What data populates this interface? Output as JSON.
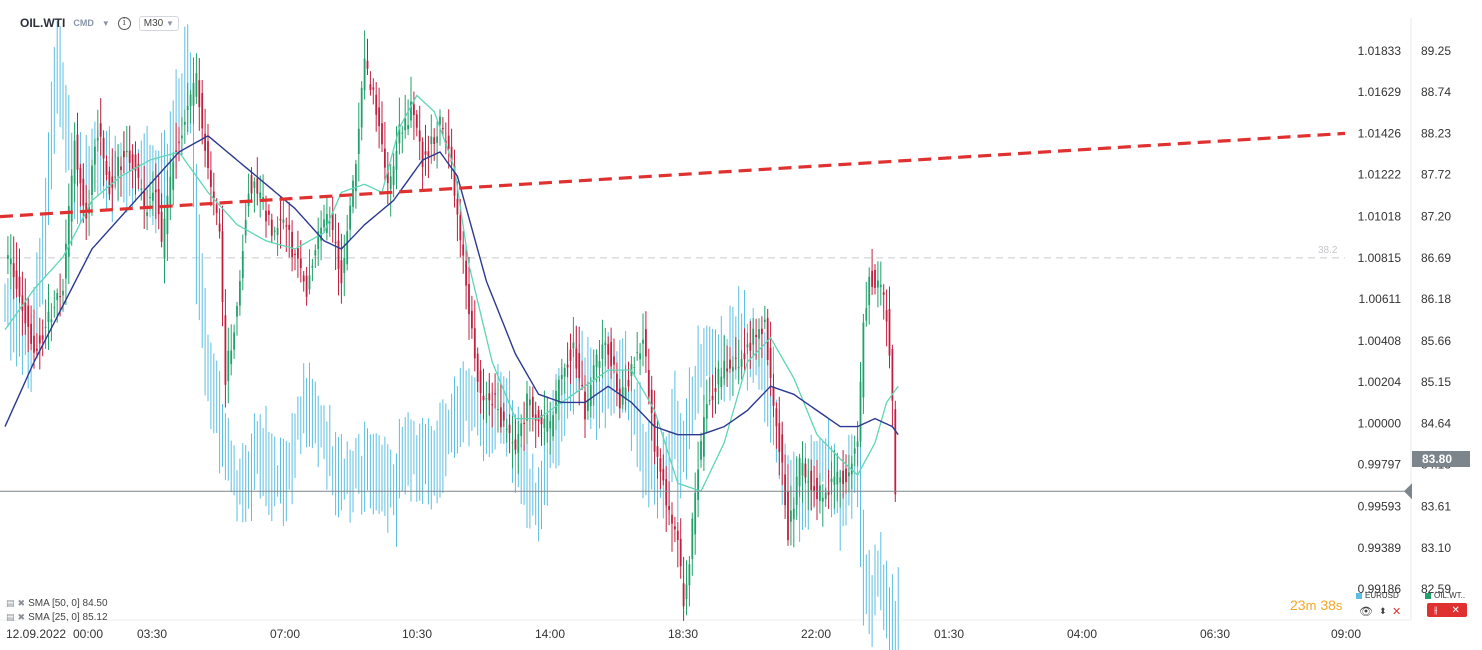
{
  "header": {
    "symbol": "OIL.WTI",
    "cmd_label": "CMD",
    "timeframe": "M30"
  },
  "indicators": [
    {
      "label": "SMA [50, 0] 84.50"
    },
    {
      "label": "SMA [25, 0] 85.12"
    }
  ],
  "timer": {
    "minutes": "23",
    "min_unit": "m",
    "seconds": "38",
    "sec_unit": "s"
  },
  "legend": [
    {
      "label": "EURUSD",
      "color": "#5bbfe3"
    },
    {
      "label": "OIL.WT..",
      "color": "#22a06b"
    }
  ],
  "current_price_label": "83.80",
  "chart_data": {
    "type": "candlestick-overlay",
    "x_tick_labels": [
      "12.09.2022",
      "00:00",
      "03:30",
      "07:00",
      "10:30",
      "14:00",
      "18:30",
      "22:00",
      "01:30",
      "04:00",
      "06:30",
      "09:00"
    ],
    "y_right_ticks": [
      "89.25",
      "88.74",
      "88.23",
      "87.72",
      "87.20",
      "86.69",
      "86.18",
      "85.66",
      "85.15",
      "84.64",
      "84.13",
      "83.61",
      "83.10",
      "82.59"
    ],
    "y_left_ticks": [
      "1.01833",
      "1.01629",
      "1.01426",
      "1.01222",
      "1.01018",
      "1.00815",
      "1.00611",
      "1.00408",
      "1.00204",
      "1.00000",
      "0.99797",
      "0.99593",
      "0.99389",
      "0.99186"
    ],
    "y_right_range": [
      82.33,
      89.51
    ],
    "fib_label": "38.2",
    "fib_level": 86.69,
    "current_price": 83.8,
    "trendline": {
      "start": 87.2,
      "end": 88.23
    },
    "colors": {
      "up": "#22a06b",
      "down": "#c0203f",
      "overlay": "#5bbfe3",
      "sma50": "#2b3990",
      "sma25": "#5ed6b5",
      "trend": "#e03131"
    },
    "oil": {
      "name": "OIL.WTI",
      "anchors": [
        [
          0,
          86.8
        ],
        [
          6,
          86.1
        ],
        [
          10,
          85.6
        ],
        [
          14,
          85.8
        ],
        [
          20,
          86.4
        ],
        [
          24,
          88.1
        ],
        [
          28,
          87.2
        ],
        [
          32,
          88.3
        ],
        [
          36,
          87.6
        ],
        [
          40,
          87.9
        ],
        [
          44,
          87.9
        ],
        [
          48,
          87.3
        ],
        [
          52,
          87.6
        ],
        [
          54,
          86.8
        ],
        [
          58,
          87.9
        ],
        [
          62,
          88.4
        ],
        [
          66,
          88.9
        ],
        [
          70,
          87.8
        ],
        [
          74,
          86.9
        ],
        [
          76,
          85.2
        ],
        [
          80,
          86.1
        ],
        [
          84,
          87.6
        ],
        [
          88,
          87.5
        ],
        [
          92,
          87.0
        ],
        [
          96,
          87.2
        ],
        [
          100,
          86.7
        ],
        [
          104,
          86.3
        ],
        [
          108,
          86.9
        ],
        [
          112,
          87.2
        ],
        [
          116,
          86.4
        ],
        [
          118,
          87.0
        ],
        [
          120,
          87.6
        ],
        [
          124,
          89.1
        ],
        [
          128,
          88.5
        ],
        [
          132,
          87.5
        ],
        [
          136,
          88.3
        ],
        [
          140,
          88.5
        ],
        [
          144,
          87.9
        ],
        [
          148,
          88.2
        ],
        [
          150,
          88.4
        ],
        [
          154,
          87.8
        ],
        [
          156,
          87.2
        ],
        [
          160,
          86.0
        ],
        [
          164,
          84.9
        ],
        [
          168,
          85.0
        ],
        [
          172,
          84.6
        ],
        [
          176,
          84.3
        ],
        [
          180,
          84.9
        ],
        [
          184,
          84.7
        ],
        [
          188,
          84.6
        ],
        [
          192,
          85.3
        ],
        [
          196,
          85.6
        ],
        [
          200,
          84.8
        ],
        [
          204,
          85.4
        ],
        [
          208,
          85.6
        ],
        [
          212,
          84.9
        ],
        [
          216,
          85.3
        ],
        [
          220,
          85.7
        ],
        [
          224,
          84.3
        ],
        [
          228,
          83.7
        ],
        [
          232,
          83.1
        ],
        [
          234,
          82.4
        ],
        [
          236,
          82.9
        ],
        [
          238,
          83.8
        ],
        [
          242,
          84.9
        ],
        [
          246,
          85.2
        ],
        [
          250,
          85.4
        ],
        [
          254,
          85.4
        ],
        [
          258,
          85.7
        ],
        [
          262,
          85.9
        ],
        [
          264,
          85.2
        ],
        [
          266,
          84.7
        ],
        [
          268,
          84.1
        ],
        [
          270,
          83.3
        ],
        [
          274,
          84.1
        ],
        [
          278,
          83.9
        ],
        [
          282,
          83.7
        ],
        [
          286,
          83.9
        ],
        [
          290,
          84.0
        ],
        [
          294,
          84.3
        ],
        [
          296,
          85.8
        ],
        [
          298,
          86.5
        ],
        [
          302,
          86.3
        ],
        [
          304,
          86.0
        ],
        [
          306,
          84.9
        ],
        [
          307,
          83.8
        ]
      ]
    },
    "eurusd": {
      "name": "EURUSD",
      "anchors": [
        [
          0,
          86.1
        ],
        [
          8,
          85.6
        ],
        [
          12,
          86.5
        ],
        [
          16,
          88.5
        ],
        [
          18,
          89.4
        ],
        [
          20,
          88.4
        ],
        [
          24,
          87.6
        ],
        [
          28,
          87.7
        ],
        [
          32,
          87.9
        ],
        [
          36,
          87.7
        ],
        [
          40,
          87.8
        ],
        [
          44,
          87.6
        ],
        [
          48,
          87.9
        ],
        [
          52,
          87.5
        ],
        [
          56,
          87.9
        ],
        [
          60,
          88.6
        ],
        [
          62,
          89.0
        ],
        [
          64,
          88.4
        ],
        [
          66,
          86.7
        ],
        [
          68,
          85.8
        ],
        [
          72,
          84.9
        ],
        [
          76,
          84.2
        ],
        [
          80,
          83.8
        ],
        [
          84,
          84.0
        ],
        [
          88,
          84.4
        ],
        [
          92,
          84.0
        ],
        [
          96,
          83.8
        ],
        [
          100,
          84.6
        ],
        [
          104,
          84.9
        ],
        [
          108,
          84.6
        ],
        [
          112,
          84.2
        ],
        [
          116,
          84.0
        ],
        [
          120,
          84.0
        ],
        [
          124,
          84.1
        ],
        [
          128,
          84.0
        ],
        [
          132,
          83.8
        ],
        [
          134,
          83.7
        ],
        [
          136,
          84.2
        ],
        [
          140,
          84.2
        ],
        [
          144,
          84.2
        ],
        [
          148,
          84.0
        ],
        [
          152,
          84.6
        ],
        [
          156,
          84.8
        ],
        [
          160,
          85.0
        ],
        [
          164,
          84.6
        ],
        [
          168,
          84.8
        ],
        [
          172,
          84.9
        ],
        [
          176,
          84.3
        ],
        [
          180,
          83.9
        ],
        [
          184,
          83.6
        ],
        [
          188,
          84.5
        ],
        [
          192,
          84.9
        ],
        [
          196,
          85.3
        ],
        [
          200,
          85.3
        ],
        [
          204,
          84.9
        ],
        [
          208,
          85.2
        ],
        [
          212,
          85.4
        ],
        [
          216,
          84.8
        ],
        [
          220,
          84.3
        ],
        [
          224,
          84.0
        ],
        [
          228,
          83.9
        ],
        [
          230,
          84.7
        ],
        [
          232,
          84.0
        ],
        [
          236,
          84.9
        ],
        [
          240,
          85.4
        ],
        [
          244,
          85.6
        ],
        [
          248,
          85.4
        ],
        [
          252,
          85.8
        ],
        [
          256,
          85.6
        ],
        [
          260,
          85.4
        ],
        [
          264,
          85.0
        ],
        [
          268,
          84.1
        ],
        [
          272,
          83.7
        ],
        [
          276,
          83.8
        ],
        [
          280,
          84.2
        ],
        [
          284,
          84.1
        ],
        [
          288,
          83.6
        ],
        [
          290,
          84.0
        ],
        [
          294,
          84.0
        ],
        [
          296,
          82.7
        ],
        [
          298,
          82.3
        ],
        [
          300,
          82.9
        ],
        [
          302,
          82.6
        ],
        [
          304,
          82.4
        ],
        [
          306,
          82.0
        ],
        [
          308,
          82.3
        ]
      ]
    },
    "sma25": {
      "name": "SMA [25, 0]",
      "anchors": [
        [
          0,
          85.8
        ],
        [
          10,
          86.3
        ],
        [
          20,
          86.7
        ],
        [
          30,
          87.4
        ],
        [
          40,
          87.7
        ],
        [
          50,
          87.9
        ],
        [
          60,
          88.0
        ],
        [
          70,
          87.5
        ],
        [
          80,
          87.1
        ],
        [
          90,
          86.9
        ],
        [
          100,
          86.8
        ],
        [
          110,
          87.0
        ],
        [
          116,
          87.5
        ],
        [
          124,
          87.6
        ],
        [
          130,
          87.5
        ],
        [
          136,
          88.3
        ],
        [
          142,
          88.7
        ],
        [
          148,
          88.5
        ],
        [
          155,
          87.8
        ],
        [
          160,
          86.6
        ],
        [
          168,
          85.4
        ],
        [
          176,
          84.7
        ],
        [
          184,
          84.7
        ],
        [
          192,
          84.9
        ],
        [
          200,
          85.1
        ],
        [
          208,
          85.3
        ],
        [
          216,
          85.3
        ],
        [
          224,
          84.8
        ],
        [
          232,
          83.9
        ],
        [
          240,
          83.8
        ],
        [
          248,
          84.4
        ],
        [
          256,
          85.4
        ],
        [
          264,
          85.7
        ],
        [
          272,
          85.2
        ],
        [
          280,
          84.5
        ],
        [
          288,
          84.2
        ],
        [
          294,
          84.0
        ],
        [
          300,
          84.4
        ],
        [
          304,
          84.9
        ],
        [
          308,
          85.1
        ]
      ]
    },
    "sma50": {
      "name": "SMA [50, 0]",
      "anchors": [
        [
          0,
          84.6
        ],
        [
          10,
          85.4
        ],
        [
          20,
          86.1
        ],
        [
          30,
          86.8
        ],
        [
          40,
          87.2
        ],
        [
          50,
          87.6
        ],
        [
          60,
          88.0
        ],
        [
          70,
          88.2
        ],
        [
          80,
          87.9
        ],
        [
          90,
          87.6
        ],
        [
          100,
          87.3
        ],
        [
          110,
          86.9
        ],
        [
          116,
          86.8
        ],
        [
          124,
          87.1
        ],
        [
          134,
          87.4
        ],
        [
          144,
          87.9
        ],
        [
          150,
          88.0
        ],
        [
          156,
          87.7
        ],
        [
          166,
          86.4
        ],
        [
          176,
          85.5
        ],
        [
          184,
          85.0
        ],
        [
          192,
          84.9
        ],
        [
          200,
          84.9
        ],
        [
          208,
          85.1
        ],
        [
          216,
          84.9
        ],
        [
          224,
          84.6
        ],
        [
          232,
          84.5
        ],
        [
          240,
          84.5
        ],
        [
          248,
          84.6
        ],
        [
          256,
          84.8
        ],
        [
          264,
          85.1
        ],
        [
          272,
          85.0
        ],
        [
          280,
          84.8
        ],
        [
          288,
          84.6
        ],
        [
          294,
          84.6
        ],
        [
          300,
          84.7
        ],
        [
          306,
          84.6
        ],
        [
          308,
          84.5
        ]
      ]
    }
  }
}
